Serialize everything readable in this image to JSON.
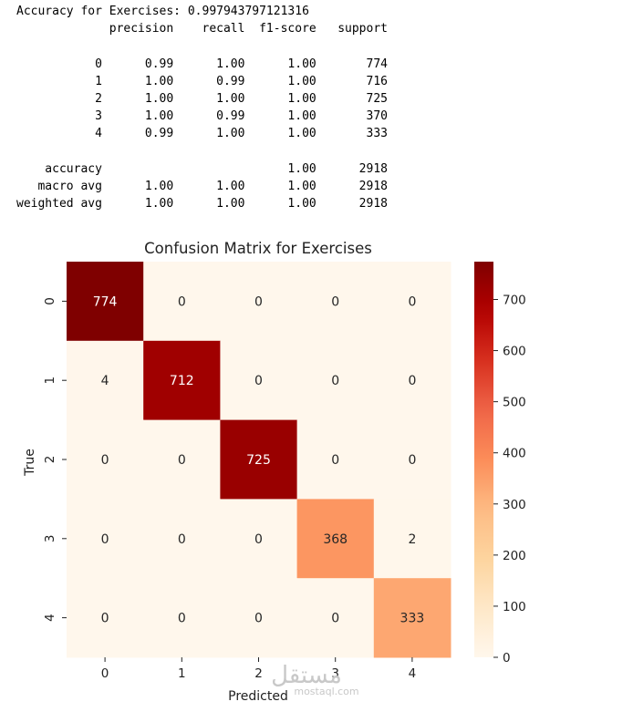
{
  "report": {
    "accuracy_line": "Accuracy for Exercises: 0.997943797121316",
    "header": [
      "precision",
      "recall",
      "f1-score",
      "support"
    ],
    "rows": [
      {
        "label": "0",
        "precision": "0.99",
        "recall": "1.00",
        "f1": "1.00",
        "support": "774"
      },
      {
        "label": "1",
        "precision": "1.00",
        "recall": "0.99",
        "f1": "1.00",
        "support": "716"
      },
      {
        "label": "2",
        "precision": "1.00",
        "recall": "1.00",
        "f1": "1.00",
        "support": "725"
      },
      {
        "label": "3",
        "precision": "1.00",
        "recall": "0.99",
        "f1": "1.00",
        "support": "370"
      },
      {
        "label": "4",
        "precision": "0.99",
        "recall": "1.00",
        "f1": "1.00",
        "support": "333"
      }
    ],
    "summary": [
      {
        "label": "accuracy",
        "precision": "",
        "recall": "",
        "f1": "1.00",
        "support": "2918"
      },
      {
        "label": "macro avg",
        "precision": "1.00",
        "recall": "1.00",
        "f1": "1.00",
        "support": "2918"
      },
      {
        "label": "weighted avg",
        "precision": "1.00",
        "recall": "1.00",
        "f1": "1.00",
        "support": "2918"
      }
    ]
  },
  "chart_data": {
    "type": "heatmap",
    "title": "Confusion Matrix for Exercises",
    "xlabel": "Predicted",
    "ylabel": "True",
    "x_categories": [
      "0",
      "1",
      "2",
      "3",
      "4"
    ],
    "y_categories": [
      "0",
      "1",
      "2",
      "3",
      "4"
    ],
    "values": [
      [
        774,
        0,
        0,
        0,
        0
      ],
      [
        4,
        712,
        0,
        0,
        0
      ],
      [
        0,
        0,
        725,
        0,
        0
      ],
      [
        0,
        0,
        0,
        368,
        2
      ],
      [
        0,
        0,
        0,
        0,
        333
      ]
    ],
    "colormap": "OrRd",
    "colorbar_range": [
      0,
      774
    ],
    "colorbar_ticks": [
      0,
      100,
      200,
      300,
      400,
      500,
      600,
      700
    ],
    "annotated": true
  },
  "watermark": {
    "arabic": "مستقل",
    "latin": "mostaql.com"
  }
}
